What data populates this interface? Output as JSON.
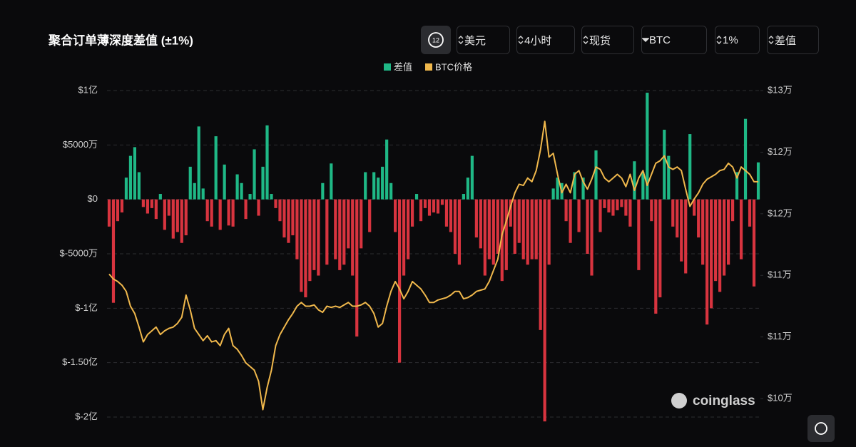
{
  "chart_data": {
    "type": "bar-line",
    "title": "聚合订单薄深度差值 (±1%)",
    "series": [
      {
        "name": "差值",
        "type": "bar",
        "color": "#1fb886",
        "negative_color": "#d8343f",
        "values": [
          -2500,
          -9500,
          -2000,
          -1200,
          2000,
          4000,
          4800,
          2500,
          -700,
          -1300,
          -800,
          -1800,
          500,
          -2800,
          -1500,
          -3600,
          -3000,
          -4000,
          -3300,
          3000,
          1500,
          6700,
          1000,
          -2000,
          -2500,
          5800,
          -2800,
          3200,
          -2400,
          -2500,
          2300,
          1500,
          -1800,
          500,
          4600,
          -1500,
          3000,
          6800,
          500,
          -800,
          -2000,
          -3500,
          -4000,
          -3300,
          -5500,
          -8500,
          -9000,
          -7500,
          -6500,
          -7000,
          1500,
          -6000,
          3300,
          -5500,
          -6500,
          -6000,
          -4500,
          -7000,
          -12600,
          -4500,
          2500,
          -3000,
          2500,
          2000,
          3000,
          5500,
          1500,
          -3000,
          -15000,
          -7000,
          -5500,
          -2500,
          500,
          -2000,
          -800,
          -1500,
          -1200,
          -1300,
          -500,
          -2500,
          -3000,
          -5000,
          -6000,
          500,
          2000,
          4000,
          -3500,
          -4500,
          -7000,
          -5500,
          -6000,
          -5000,
          -7500,
          -6500,
          -2500,
          -5000,
          -4000,
          -5500,
          -6000,
          -5500,
          -5500,
          -12000,
          -20400,
          -6000,
          1000,
          2000,
          1500,
          -2000,
          -4000,
          2500,
          -3000,
          2000,
          -5000,
          -7000,
          4500,
          -3000,
          -800,
          -1200,
          -1500,
          -1000,
          -700,
          -1500,
          -2500,
          3500,
          -6500,
          2500,
          9800,
          -2000,
          -10500,
          -9000,
          6400,
          4000,
          -2500,
          -3500,
          -5700,
          -6800,
          6000,
          -1500,
          -3500,
          -6000,
          -11500,
          -10000,
          -7500,
          -8500,
          -7000,
          -6000,
          -2000,
          2500,
          -5500,
          7400,
          -2500,
          -8000,
          3400
        ]
      },
      {
        "name": "BTC价格",
        "type": "line",
        "color": "#f0b84c",
        "axis": "y2",
        "values": [
          115100,
          114700,
          114500,
          114200,
          113700,
          112500,
          111900,
          110800,
          109600,
          110200,
          110500,
          110800,
          110200,
          110500,
          110700,
          110800,
          111100,
          111600,
          113400,
          112200,
          110700,
          110200,
          109700,
          110100,
          109600,
          109700,
          109300,
          110200,
          110700,
          109300,
          109000,
          108500,
          107900,
          107600,
          107300,
          106400,
          104100,
          105900,
          107300,
          109300,
          110200,
          110800,
          111400,
          111900,
          112500,
          112800,
          112500,
          112500,
          112600,
          112200,
          112000,
          112500,
          112400,
          112500,
          112400,
          112600,
          112800,
          112500,
          112500,
          112600,
          112800,
          112500,
          111900,
          110800,
          111100,
          112500,
          113700,
          114500,
          113900,
          113100,
          113700,
          114500,
          114200,
          113900,
          113400,
          112800,
          112800,
          113000,
          113100,
          113200,
          113400,
          113700,
          113700,
          113100,
          113200,
          113400,
          113700,
          113800,
          113900,
          114500,
          115400,
          116300,
          118300,
          119400,
          120600,
          121700,
          122400,
          122300,
          122900,
          122600,
          123500,
          125200,
          127500,
          124600,
          124900,
          123200,
          121700,
          122400,
          121700,
          123200,
          123500,
          122600,
          122000,
          122800,
          123800,
          123600,
          122900,
          122600,
          122900,
          123200,
          122900,
          122200,
          123200,
          121900,
          122900,
          123500,
          122300,
          123200,
          124100,
          124300,
          124700,
          123800,
          123600,
          123800,
          123500,
          122000,
          120600,
          121200,
          121700,
          122400,
          122800,
          123000,
          123200,
          123500,
          123600,
          124100,
          123800,
          122900,
          123800,
          123500,
          123200,
          122600,
          122600
        ]
      }
    ],
    "ylim": [
      -20000,
      10000
    ],
    "yticks": [
      {
        "value": 10000,
        "label": "$1亿"
      },
      {
        "value": 5000,
        "label": "$5000万"
      },
      {
        "value": 0,
        "label": "$0"
      },
      {
        "value": -5000,
        "label": "$-5000万"
      },
      {
        "value": -10000,
        "label": "$-1亿"
      },
      {
        "value": -15000,
        "label": "$-1.50亿"
      },
      {
        "value": -20000,
        "label": "$-2亿"
      }
    ],
    "y2lim": [
      103500,
      130000
    ],
    "y2ticks": [
      {
        "value": 130000,
        "label": "$13万"
      },
      {
        "value": 125000,
        "label": "$12万"
      },
      {
        "value": 120000,
        "label": "$12万"
      },
      {
        "value": 115000,
        "label": "$11万"
      },
      {
        "value": 110000,
        "label": "$11万"
      },
      {
        "value": 105000,
        "label": "$10万"
      }
    ],
    "grid": true,
    "legend": "top"
  },
  "toolbar": {
    "refresh": "12",
    "buttons": [
      "美元",
      "4小时",
      "现货",
      "BTC",
      "1%",
      "差值"
    ]
  },
  "watermark": "coinglass"
}
